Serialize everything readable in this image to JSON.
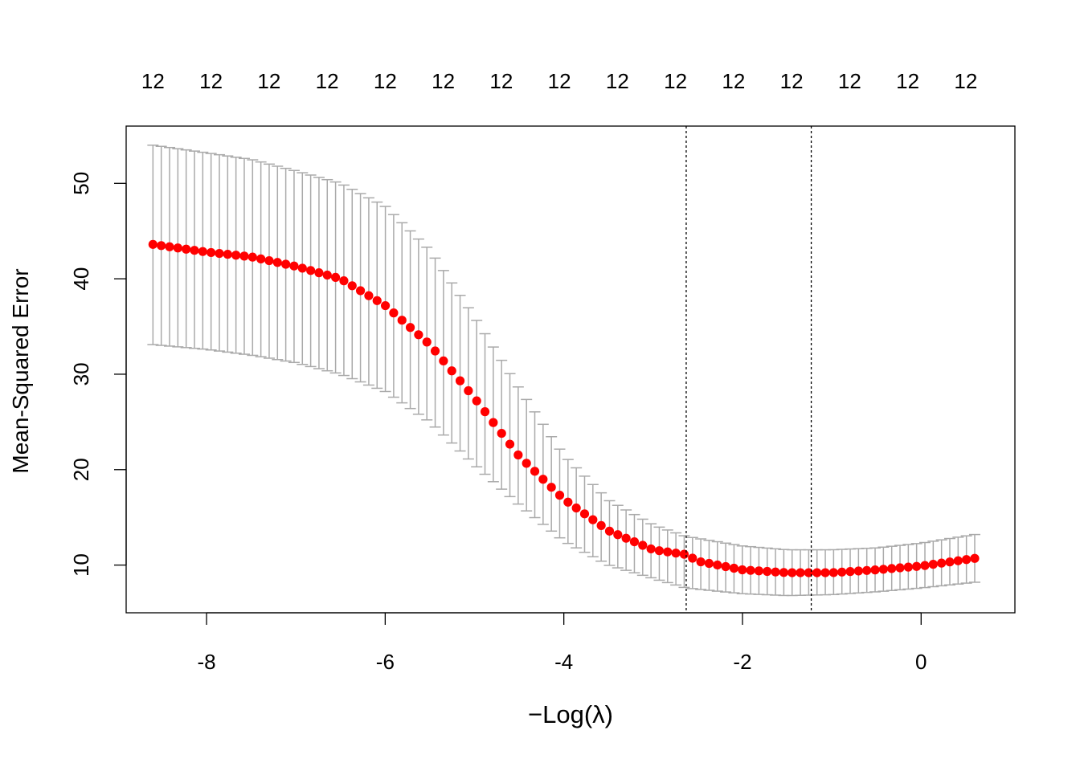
{
  "chart_data": {
    "type": "scatter",
    "title": "",
    "xlabel_prefix": "−",
    "xlabel_main": "Log(λ)",
    "ylabel": "Mean-Squared Error",
    "xlim": [
      -8.9,
      1.05
    ],
    "ylim": [
      5,
      56
    ],
    "x_ticks": [
      -8,
      -6,
      -4,
      -2,
      0
    ],
    "x_tick_labels": [
      "-8",
      "-6",
      "-4",
      "-2",
      "0"
    ],
    "y_ticks": [
      10,
      20,
      30,
      40,
      50
    ],
    "y_tick_labels": [
      "10",
      "20",
      "30",
      "40",
      "50"
    ],
    "top_axis_labels": [
      {
        "x": -8.6,
        "label": "12"
      },
      {
        "x": -7.95,
        "label": "12"
      },
      {
        "x": -7.3,
        "label": "12"
      },
      {
        "x": -6.65,
        "label": "12"
      },
      {
        "x": -6.0,
        "label": "12"
      },
      {
        "x": -5.35,
        "label": "12"
      },
      {
        "x": -4.7,
        "label": "12"
      },
      {
        "x": -4.05,
        "label": "12"
      },
      {
        "x": -3.4,
        "label": "12"
      },
      {
        "x": -2.75,
        "label": "12"
      },
      {
        "x": -2.1,
        "label": "12"
      },
      {
        "x": -1.45,
        "label": "12"
      },
      {
        "x": -0.8,
        "label": "12"
      },
      {
        "x": -0.15,
        "label": "12"
      },
      {
        "x": 0.5,
        "label": "12"
      }
    ],
    "vlines": [
      -2.63,
      -1.23
    ],
    "n_points": 100,
    "x_range": [
      -8.6,
      0.6
    ],
    "y_keypoints": [
      [
        -8.6,
        43.6
      ],
      [
        -8.0,
        42.8
      ],
      [
        -7.5,
        42.3
      ],
      [
        -7.0,
        41.3
      ],
      [
        -6.5,
        40.0
      ],
      [
        -6.0,
        37.2
      ],
      [
        -5.5,
        33.1
      ],
      [
        -5.0,
        27.5
      ],
      [
        -4.5,
        21.4
      ],
      [
        -4.0,
        16.9
      ],
      [
        -3.5,
        13.6
      ],
      [
        -3.0,
        11.6
      ],
      [
        -2.63,
        11.1
      ],
      [
        -2.5,
        10.4
      ],
      [
        -2.0,
        9.5
      ],
      [
        -1.5,
        9.2
      ],
      [
        -1.2,
        9.2
      ],
      [
        -1.0,
        9.2
      ],
      [
        -0.5,
        9.5
      ],
      [
        0.0,
        9.9
      ],
      [
        0.6,
        10.7
      ]
    ],
    "lower_keypoints": [
      [
        -8.6,
        33.1
      ],
      [
        -8.0,
        32.6
      ],
      [
        -7.5,
        32.0
      ],
      [
        -7.0,
        31.2
      ],
      [
        -6.5,
        30.0
      ],
      [
        -6.0,
        28.2
      ],
      [
        -5.5,
        25.0
      ],
      [
        -5.0,
        20.5
      ],
      [
        -4.5,
        16.3
      ],
      [
        -4.0,
        12.5
      ],
      [
        -3.5,
        10.0
      ],
      [
        -3.0,
        8.6
      ],
      [
        -2.63,
        7.6
      ],
      [
        -2.0,
        7.0
      ],
      [
        -1.5,
        6.8
      ],
      [
        -1.0,
        6.9
      ],
      [
        -0.5,
        7.2
      ],
      [
        0.0,
        7.6
      ],
      [
        0.6,
        8.2
      ]
    ],
    "upper_keypoints": [
      [
        -8.6,
        54.0
      ],
      [
        -8.0,
        53.2
      ],
      [
        -7.5,
        52.5
      ],
      [
        -7.0,
        51.3
      ],
      [
        -6.5,
        50.0
      ],
      [
        -6.0,
        47.6
      ],
      [
        -5.5,
        43.0
      ],
      [
        -5.0,
        36.0
      ],
      [
        -4.5,
        28.5
      ],
      [
        -4.0,
        21.5
      ],
      [
        -3.5,
        16.8
      ],
      [
        -3.0,
        14.2
      ],
      [
        -2.63,
        13.0
      ],
      [
        -2.0,
        12.0
      ],
      [
        -1.5,
        11.6
      ],
      [
        -1.0,
        11.6
      ],
      [
        -0.5,
        11.8
      ],
      [
        0.0,
        12.3
      ],
      [
        0.6,
        13.2
      ]
    ],
    "point_color": "#ff0000",
    "errorbar_color": "#aaaaaa",
    "vline_color": "#000000",
    "grid": false,
    "legend": "none"
  }
}
